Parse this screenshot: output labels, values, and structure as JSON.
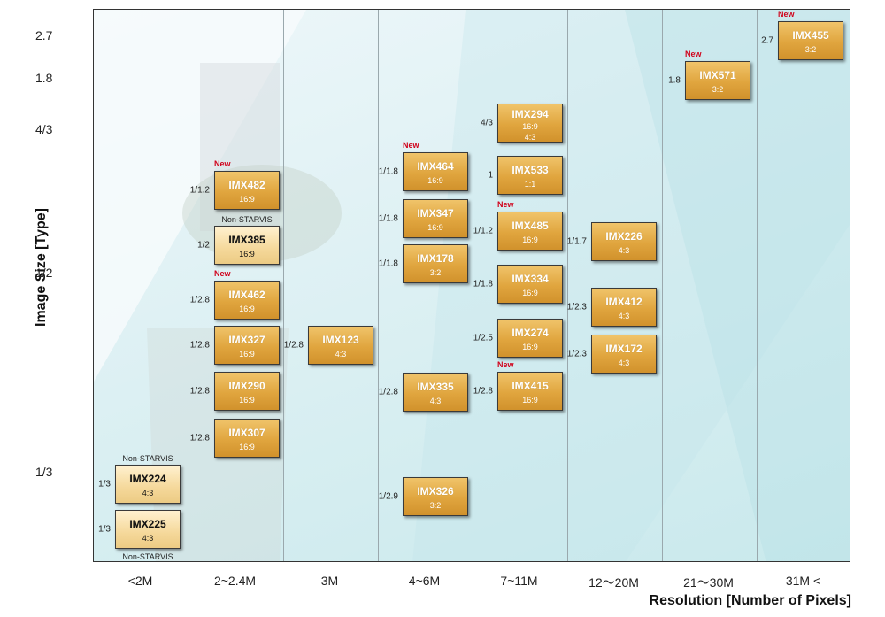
{
  "chart_data": {
    "type": "table",
    "xlabel": "Resolution  [Number of Pixels]",
    "ylabel": "Image Size [Type]",
    "x_categories": [
      "<2M",
      "2~2.4M",
      "3M",
      "4~6M",
      "7~11M",
      "12〜20M",
      "21〜30M",
      "31M <"
    ],
    "y_ticks": [
      "2.7",
      "1.8",
      "4/3",
      "1/2",
      "1/3"
    ],
    "sensors": [
      {
        "name": "IMX224",
        "ratio": "4:3",
        "image_size": "1/3",
        "resolution": "<2M",
        "tag": "Non-STARVIS",
        "variant": "light"
      },
      {
        "name": "IMX225",
        "ratio": "4:3",
        "image_size": "1/3",
        "resolution": "<2M",
        "tag": "Non-STARVIS",
        "variant": "light"
      },
      {
        "name": "IMX482",
        "ratio": "16:9",
        "image_size": "1/1.2",
        "resolution": "2~2.4M",
        "tag": "New"
      },
      {
        "name": "IMX385",
        "ratio": "16:9",
        "image_size": "1/2",
        "resolution": "2~2.4M",
        "tag": "Non-STARVIS",
        "variant": "light"
      },
      {
        "name": "IMX462",
        "ratio": "16:9",
        "image_size": "1/2.8",
        "resolution": "2~2.4M",
        "tag": "New"
      },
      {
        "name": "IMX327",
        "ratio": "16:9",
        "image_size": "1/2.8",
        "resolution": "2~2.4M"
      },
      {
        "name": "IMX290",
        "ratio": "16:9",
        "image_size": "1/2.8",
        "resolution": "2~2.4M"
      },
      {
        "name": "IMX307",
        "ratio": "16:9",
        "image_size": "1/2.8",
        "resolution": "2~2.4M"
      },
      {
        "name": "IMX123",
        "ratio": "4:3",
        "image_size": "1/2.8",
        "resolution": "3M"
      },
      {
        "name": "IMX464",
        "ratio": "16:9",
        "image_size": "1/1.8",
        "resolution": "4~6M",
        "tag": "New"
      },
      {
        "name": "IMX347",
        "ratio": "16:9",
        "image_size": "1/1.8",
        "resolution": "4~6M"
      },
      {
        "name": "IMX178",
        "ratio": "3:2",
        "image_size": "1/1.8",
        "resolution": "4~6M"
      },
      {
        "name": "IMX335",
        "ratio": "4:3",
        "image_size": "1/2.8",
        "resolution": "4~6M"
      },
      {
        "name": "IMX326",
        "ratio": "3:2",
        "image_size": "1/2.9",
        "resolution": "4~6M"
      },
      {
        "name": "IMX294",
        "ratio": "16:9\n4:3",
        "image_size": "4/3",
        "resolution": "7~11M"
      },
      {
        "name": "IMX533",
        "ratio": "1:1",
        "image_size": "1",
        "resolution": "7~11M"
      },
      {
        "name": "IMX485",
        "ratio": "16:9",
        "image_size": "1/1.2",
        "resolution": "7~11M",
        "tag": "New"
      },
      {
        "name": "IMX334",
        "ratio": "16:9",
        "image_size": "1/1.8",
        "resolution": "7~11M"
      },
      {
        "name": "IMX274",
        "ratio": "16:9",
        "image_size": "1/2.5",
        "resolution": "7~11M"
      },
      {
        "name": "IMX415",
        "ratio": "16:9",
        "image_size": "1/2.8",
        "resolution": "7~11M",
        "tag": "New"
      },
      {
        "name": "IMX226",
        "ratio": "4:3",
        "image_size": "1/1.7",
        "resolution": "12〜20M"
      },
      {
        "name": "IMX412",
        "ratio": "4:3",
        "image_size": "1/2.3",
        "resolution": "12〜20M"
      },
      {
        "name": "IMX172",
        "ratio": "4:3",
        "image_size": "1/2.3",
        "resolution": "12〜20M"
      },
      {
        "name": "IMX571",
        "ratio": "3:2",
        "image_size": "1.8",
        "resolution": "21〜30M",
        "tag": "New"
      },
      {
        "name": "IMX455",
        "ratio": "3:2",
        "image_size": "2.7",
        "resolution": "31M <",
        "tag": "New"
      }
    ],
    "colors": {
      "box": "#e0a53e",
      "box_light": "#f5d89a",
      "new_tag": "#d0021b",
      "grid": "#9aa8ad"
    }
  }
}
